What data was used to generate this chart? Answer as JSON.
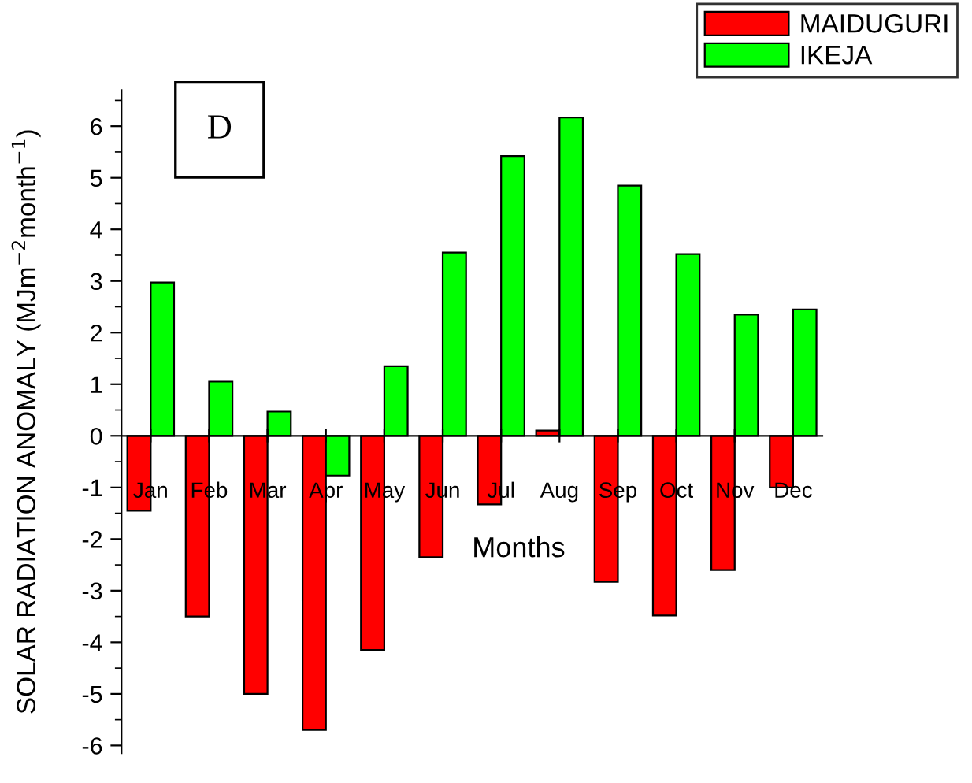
{
  "chart_data": {
    "type": "bar",
    "ylabel": "SOLAR RADIATION ANOMALY (MJm$^{−2}$month$^{−1}$)",
    "xlabel": "Months",
    "annotations": [
      "D"
    ],
    "categories": [
      "Jan",
      "Feb",
      "Mar",
      "Apr",
      "May",
      "Jun",
      "Jul",
      "Aug",
      "Sep",
      "Oct",
      "Nov",
      "Dec"
    ],
    "series": [
      {
        "name": "MAIDUGURI",
        "color": "#ff0000",
        "values": [
          -1.45,
          -3.5,
          -5.0,
          -5.7,
          -4.15,
          -2.35,
          -1.33,
          0.1,
          -2.83,
          -3.48,
          -2.6,
          -1.0
        ]
      },
      {
        "name": "IKEJA",
        "color": "#00ff00",
        "values": [
          2.97,
          1.05,
          0.47,
          -0.77,
          1.35,
          3.55,
          5.42,
          6.17,
          4.85,
          3.52,
          2.35,
          2.45
        ]
      }
    ],
    "ylim": [
      -6.15,
      6.7
    ],
    "yticks": [
      -6,
      -5,
      -4,
      -3,
      -2,
      -1,
      0,
      1,
      2,
      3,
      4,
      5,
      6
    ],
    "grid": false,
    "legend": "top right"
  }
}
